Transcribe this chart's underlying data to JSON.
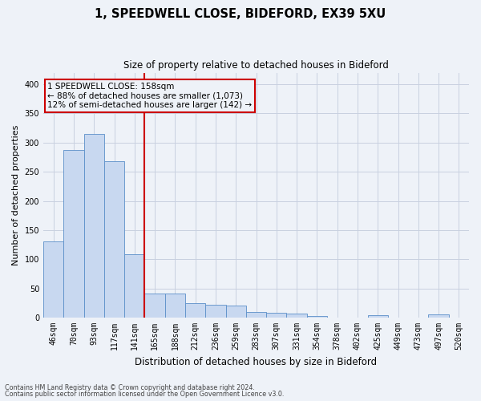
{
  "title1": "1, SPEEDWELL CLOSE, BIDEFORD, EX39 5XU",
  "title2": "Size of property relative to detached houses in Bideford",
  "xlabel": "Distribution of detached houses by size in Bideford",
  "ylabel": "Number of detached properties",
  "categories": [
    "46sqm",
    "70sqm",
    "93sqm",
    "117sqm",
    "141sqm",
    "165sqm",
    "188sqm",
    "212sqm",
    "236sqm",
    "259sqm",
    "283sqm",
    "307sqm",
    "331sqm",
    "354sqm",
    "378sqm",
    "402sqm",
    "425sqm",
    "449sqm",
    "473sqm",
    "497sqm",
    "520sqm"
  ],
  "values": [
    130,
    288,
    315,
    268,
    108,
    42,
    42,
    25,
    22,
    21,
    10,
    8,
    7,
    3,
    0,
    0,
    4,
    0,
    0,
    5,
    0
  ],
  "bar_color": "#c8d8f0",
  "bar_edge_color": "#5b8fc9",
  "grid_color": "#c8d0e0",
  "vline_x_index": 5,
  "vline_color": "#cc0000",
  "annotation_line1": "1 SPEEDWELL CLOSE: 158sqm",
  "annotation_line2": "← 88% of detached houses are smaller (1,073)",
  "annotation_line3": "12% of semi-detached houses are larger (142) →",
  "annotation_box_color": "#cc0000",
  "ylim": [
    0,
    420
  ],
  "yticks": [
    0,
    50,
    100,
    150,
    200,
    250,
    300,
    350,
    400
  ],
  "footer1": "Contains HM Land Registry data © Crown copyright and database right 2024.",
  "footer2": "Contains public sector information licensed under the Open Government Licence v3.0.",
  "background_color": "#eef2f8",
  "title1_fontsize": 10.5,
  "title2_fontsize": 8.5,
  "ylabel_fontsize": 8,
  "xlabel_fontsize": 8.5,
  "tick_fontsize": 7,
  "annotation_fontsize": 7.5,
  "footer_fontsize": 5.8
}
